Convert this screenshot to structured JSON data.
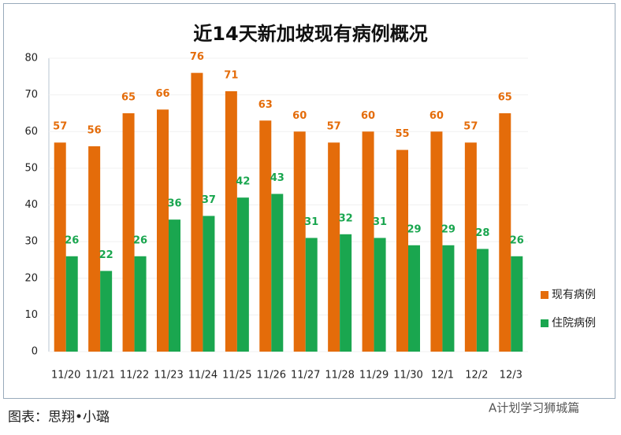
{
  "chart_data": {
    "type": "bar",
    "title": "近14天新加坡现有病例概况",
    "categories": [
      "11/20",
      "11/21",
      "11/22",
      "11/23",
      "11/24",
      "11/25",
      "11/26",
      "11/27",
      "11/28",
      "11/29",
      "11/30",
      "12/1",
      "12/2",
      "12/3"
    ],
    "series": [
      {
        "name": "现有病例",
        "color": "#e46c0a",
        "values": [
          57,
          56,
          65,
          66,
          76,
          71,
          63,
          60,
          57,
          60,
          55,
          60,
          57,
          65
        ]
      },
      {
        "name": "住院病例",
        "color": "#1aa64f",
        "values": [
          26,
          22,
          26,
          36,
          37,
          42,
          43,
          31,
          32,
          31,
          29,
          29,
          28,
          26
        ]
      }
    ],
    "ylim": [
      0,
      80
    ],
    "yticks": [
      0,
      10,
      20,
      30,
      40,
      50,
      60,
      70,
      80
    ],
    "grid": true,
    "legend": "right"
  },
  "caption": "图表：思翔•小璐",
  "watermark": "A计划学习狮城篇"
}
